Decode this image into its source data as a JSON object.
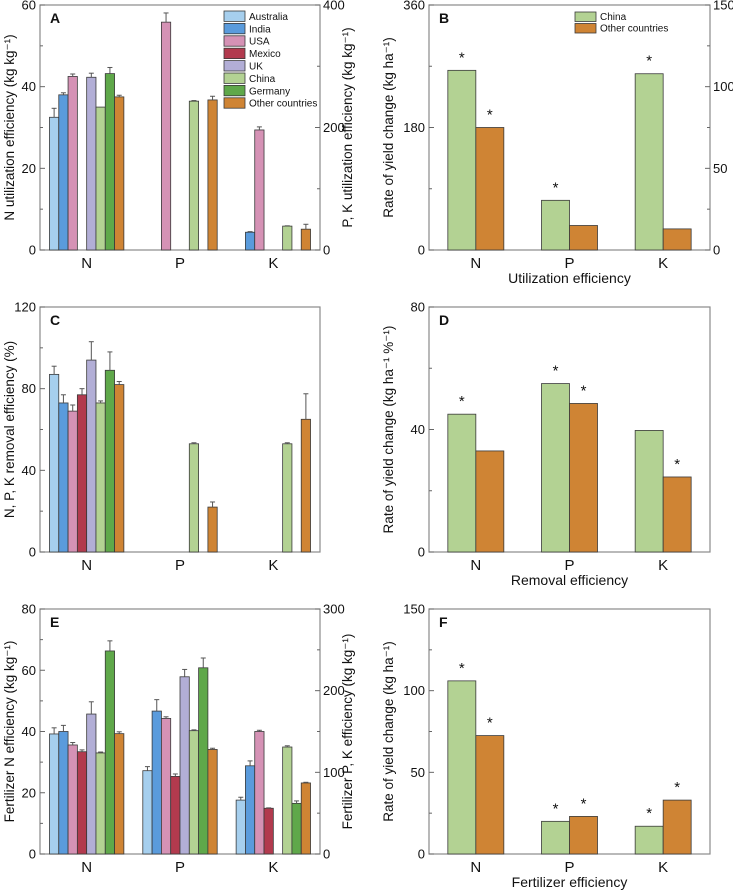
{
  "chart_data": [
    {
      "panel": "A",
      "type": "bar",
      "categories": [
        "N",
        "P",
        "K"
      ],
      "ylabel": "N utilization efficiency (kg kg⁻¹)",
      "ylabel_right": "P, K utilization efficiency (kg kg⁻¹)",
      "ylim": [
        0,
        60
      ],
      "yticks": [
        0,
        20,
        40,
        60
      ],
      "ylim_right": [
        0,
        400
      ],
      "yticks_right": [
        0,
        200,
        400
      ],
      "category_axis": [
        "left",
        "right",
        "right"
      ],
      "legend": "top-right",
      "series": [
        {
          "name": "Australia",
          "color": "#a6cfee",
          "values": [
            32.5,
            null,
            null
          ],
          "errors": [
            2.2,
            null,
            null
          ]
        },
        {
          "name": "India",
          "color": "#5a9bdc",
          "values": [
            38.0,
            null,
            29
          ],
          "errors": [
            0.5,
            null,
            1
          ]
        },
        {
          "name": "USA",
          "color": "#d592b5",
          "values": [
            42.5,
            372,
            196
          ],
          "errors": [
            0.6,
            15,
            5
          ]
        },
        {
          "name": "Mexico",
          "color": "#b23a4e",
          "values": [
            null,
            null,
            null
          ],
          "errors": [
            null,
            null,
            null
          ]
        },
        {
          "name": "UK",
          "color": "#b2aed6",
          "values": [
            42.3,
            null,
            null
          ],
          "errors": [
            1.0,
            null,
            null
          ]
        },
        {
          "name": "China",
          "color": "#b3d293",
          "values": [
            35.0,
            243,
            39
          ],
          "errors": [
            0,
            1,
            0.5
          ]
        },
        {
          "name": "Germany",
          "color": "#5fa84a",
          "values": [
            43.2,
            null,
            null
          ],
          "errors": [
            1.5,
            null,
            null
          ]
        },
        {
          "name": "Other countries",
          "color": "#cf8434",
          "values": [
            37.5,
            245,
            34
          ],
          "errors": [
            0.4,
            6,
            8
          ]
        }
      ]
    },
    {
      "panel": "B",
      "type": "bar",
      "categories": [
        "N",
        "P",
        "K"
      ],
      "xlabel": "Utilization efficiency",
      "ylabel": "Rate of yield change (kg ha⁻¹)",
      "ylim": [
        0,
        360
      ],
      "yticks": [
        0,
        180,
        360
      ],
      "ylim_right": [
        0,
        150
      ],
      "yticks_right": [
        0,
        50,
        100,
        150
      ],
      "legend": "top-right",
      "series": [
        {
          "name": "China",
          "color": "#b3d293",
          "values": [
            264,
            73,
            259
          ],
          "significant": [
            true,
            true,
            true
          ]
        },
        {
          "name": "Other countries",
          "color": "#cf8434",
          "values": [
            180,
            36,
            31
          ],
          "significant": [
            true,
            false,
            false
          ]
        }
      ]
    },
    {
      "panel": "C",
      "type": "bar",
      "categories": [
        "N",
        "P",
        "K"
      ],
      "ylabel": "N, P, K removal efficiency (%)",
      "ylim": [
        0,
        120
      ],
      "yticks": [
        0,
        40,
        80,
        120
      ],
      "series": [
        {
          "name": "Australia",
          "color": "#a6cfee",
          "values": [
            87,
            null,
            null
          ],
          "errors": [
            4,
            null,
            null
          ]
        },
        {
          "name": "India",
          "color": "#5a9bdc",
          "values": [
            73,
            null,
            null
          ],
          "errors": [
            4,
            null,
            null
          ]
        },
        {
          "name": "USA",
          "color": "#d592b5",
          "values": [
            69,
            null,
            null
          ],
          "errors": [
            3,
            null,
            null
          ]
        },
        {
          "name": "Mexico",
          "color": "#b23a4e",
          "values": [
            77,
            null,
            null
          ],
          "errors": [
            3,
            null,
            null
          ]
        },
        {
          "name": "UK",
          "color": "#b2aed6",
          "values": [
            94,
            null,
            null
          ],
          "errors": [
            9,
            null,
            null
          ]
        },
        {
          "name": "China",
          "color": "#b3d293",
          "values": [
            73,
            53,
            53
          ],
          "errors": [
            1,
            0.5,
            0.5
          ]
        },
        {
          "name": "Germany",
          "color": "#5fa84a",
          "values": [
            89,
            null,
            null
          ],
          "errors": [
            9,
            null,
            null
          ]
        },
        {
          "name": "Other countries",
          "color": "#cf8434",
          "values": [
            82,
            22,
            65
          ],
          "errors": [
            1.5,
            2.5,
            12.5
          ]
        }
      ]
    },
    {
      "panel": "D",
      "type": "bar",
      "categories": [
        "N",
        "P",
        "K"
      ],
      "xlabel": "Removal efficiency",
      "ylabel": "Rate of yield change (kg ha⁻¹ %⁻¹)",
      "ylim": [
        0,
        80
      ],
      "yticks": [
        0,
        40,
        80
      ],
      "series": [
        {
          "name": "China",
          "color": "#b3d293",
          "values": [
            45,
            55,
            39.7
          ],
          "significant": [
            true,
            true,
            false
          ]
        },
        {
          "name": "Other countries",
          "color": "#cf8434",
          "values": [
            33,
            48.5,
            24.5
          ],
          "significant": [
            false,
            true,
            true
          ]
        }
      ]
    },
    {
      "panel": "E",
      "type": "bar",
      "categories": [
        "N",
        "P",
        "K"
      ],
      "ylabel": "Fertilizer N efficiency (kg kg⁻¹)",
      "ylabel_right": "Fertilizer P, K efficiency (kg kg⁻¹)",
      "ylim": [
        0,
        80
      ],
      "yticks": [
        0,
        20,
        40,
        60,
        80
      ],
      "ylim_right": [
        0,
        300
      ],
      "yticks_right": [
        0,
        100,
        200,
        300
      ],
      "category_axis": [
        "left",
        "right",
        "right"
      ],
      "series": [
        {
          "name": "Australia",
          "color": "#a6cfee",
          "values": [
            39.2,
            102,
            66
          ],
          "errors": [
            2,
            5,
            3.5
          ]
        },
        {
          "name": "India",
          "color": "#5a9bdc",
          "values": [
            40.0,
            175,
            108
          ],
          "errors": [
            2,
            14,
            6
          ]
        },
        {
          "name": "USA",
          "color": "#d592b5",
          "values": [
            35.6,
            166,
            150
          ],
          "errors": [
            0.8,
            2,
            1.5
          ]
        },
        {
          "name": "Mexico",
          "color": "#b23a4e",
          "values": [
            33.4,
            95,
            56
          ],
          "errors": [
            0.6,
            3,
            0.5
          ]
        },
        {
          "name": "UK",
          "color": "#b2aed6",
          "values": [
            45.7,
            217,
            null
          ],
          "errors": [
            4,
            9,
            null
          ]
        },
        {
          "name": "China",
          "color": "#b3d293",
          "values": [
            33.0,
            151,
            131
          ],
          "errors": [
            0.3,
            1,
            1.5
          ]
        },
        {
          "name": "Germany",
          "color": "#5fa84a",
          "values": [
            66.3,
            228,
            62
          ],
          "errors": [
            3.3,
            12,
            3
          ]
        },
        {
          "name": "Other countries",
          "color": "#cf8434",
          "values": [
            39.3,
            128,
            87
          ],
          "errors": [
            0.6,
            1.5,
            0.8
          ]
        }
      ]
    },
    {
      "panel": "F",
      "type": "bar",
      "categories": [
        "N",
        "P",
        "K"
      ],
      "xlabel": "Fertilizer efficiency",
      "ylabel": "Rate of yield change (kg ha⁻¹)",
      "ylim": [
        0,
        150
      ],
      "yticks": [
        0,
        50,
        100,
        150
      ],
      "series": [
        {
          "name": "China",
          "color": "#b3d293",
          "values": [
            106,
            20,
            17
          ],
          "significant": [
            true,
            true,
            true
          ]
        },
        {
          "name": "Other countries",
          "color": "#cf8434",
          "values": [
            72.5,
            23,
            33
          ],
          "significant": [
            true,
            true,
            true
          ]
        }
      ]
    }
  ],
  "significance_marker": "*"
}
